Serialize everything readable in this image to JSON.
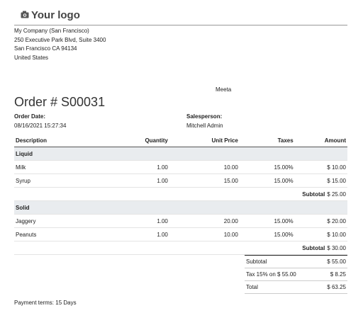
{
  "header": {
    "logo": "Your logo"
  },
  "company": {
    "lines": [
      "My Company (San Francisco)",
      "250 Executive Park Blvd, Suite 3400",
      "San Francisco CA 94134",
      "United States"
    ]
  },
  "partner": "Meeta",
  "order": {
    "title": "Order # S00031",
    "date_label": "Order Date:",
    "date": "08/16/2021 15:27:34",
    "salesperson_label": "Salesperson:",
    "salesperson": "Mitchell Admin"
  },
  "table": {
    "columns": [
      "Description",
      "Quantity",
      "Unit Price",
      "Taxes",
      "Amount"
    ],
    "sections": [
      {
        "name": "Liquid",
        "rows": [
          [
            "Milk",
            "1.00",
            "10.00",
            "15.00%",
            "$ 10.00"
          ],
          [
            "Syrup",
            "1.00",
            "15.00",
            "15.00%",
            "$ 15.00"
          ]
        ],
        "subtotal_label": "Subtotal",
        "subtotal": "$ 25.00"
      },
      {
        "name": "Solid",
        "rows": [
          [
            "Jaggery",
            "1.00",
            "20.00",
            "15.00%",
            "$ 20.00"
          ],
          [
            "Peanuts",
            "1.00",
            "10.00",
            "15.00%",
            "$ 10.00"
          ]
        ],
        "subtotal_label": "Subtotal",
        "subtotal": "$ 30.00"
      }
    ]
  },
  "totals": {
    "rows": [
      [
        "Subtotal",
        "$ 55.00"
      ],
      [
        "Tax 15% on $ 55.00",
        "$ 8.25"
      ],
      [
        "Total",
        "$ 63.25"
      ]
    ]
  },
  "payment_terms": "Payment terms: 15 Days"
}
